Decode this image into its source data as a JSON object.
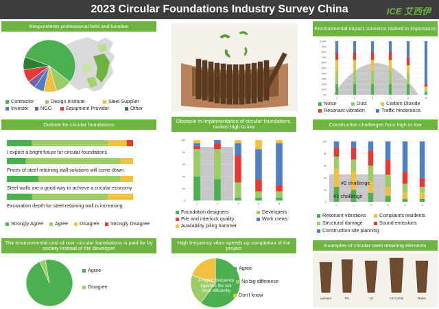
{
  "page": {
    "title": "2023 Circular Foundations Industry Survey China",
    "logo": "ICE 艾西伊"
  },
  "colors": {
    "green": "#4caf50",
    "light_green": "#9ccc65",
    "yellow": "#f0c040",
    "blue": "#4f7fc4",
    "purple": "#7b5ea7",
    "red": "#e53935",
    "dark_green": "#2e7d32",
    "grey": "#bdbdbd"
  },
  "panels": {
    "respondents": {
      "title": "Respondents professional field and location",
      "legend": [
        "Contractor",
        "Design Institute",
        "Steel Supplier",
        "Investor",
        "NGO",
        "Equipment Provider",
        "Other"
      ]
    },
    "impact": {
      "title": "Environmental impact concerns ranked in importance",
      "legend": [
        "Noise",
        "Dust",
        "Carbon Dioxide",
        "Resonant vibration",
        "Traffic hinderance"
      ]
    },
    "outlook": {
      "title": "Outlook for circular foundations",
      "statements": [
        "I expect a bright future for circular foundations",
        "Prices of steel retaining wall solutions will come down",
        "Steel walls are a good way to achieve a circular economy",
        "Excavation depth for steel retaining wall is increasing"
      ],
      "legend": [
        "Strongly Agree",
        "Agree",
        "Disagree",
        "Strongly Disagree"
      ]
    },
    "obstacle": {
      "title": "Obstacle to implementation of circular foundations, ranked high to low",
      "legend": [
        "Foundation designers",
        "Developers",
        "Pile and interlock quality",
        "Work crews",
        "Availability piling hammer"
      ]
    },
    "construction": {
      "title": "Construction challenges from high to low",
      "annotations": [
        "#2 challenge",
        "#1 challenge"
      ],
      "legend": [
        "Resonant vibrations",
        "Complaints residents",
        "Structural damage",
        "Sound emissions",
        "Construction site planning"
      ]
    },
    "env_cost": {
      "title": "The environmental cost of non- circular foundations is paid for by society instead of the developer",
      "legend": [
        "Agree",
        "Disagree"
      ]
    },
    "vibro": {
      "title": "High frequency vibro speeds up completion of the project",
      "legend": [
        "Agree",
        "No big difference",
        "Don't know"
      ],
      "note": "A higher frequency liquefies the soil more efficiently"
    },
    "examples": {
      "title": "Examples of circular steel retaining elements",
      "items": [
        "Larssen",
        "PC",
        "AZ",
        "AZ Combi",
        "Rhine"
      ]
    }
  },
  "chart_data": [
    {
      "type": "pie",
      "name": "respondents",
      "labels": [
        "Contractor",
        "Design Institute",
        "Steel Supplier",
        "Investor",
        "NGO",
        "Equipment Provider",
        "Other"
      ],
      "values": [
        55,
        10,
        8,
        6,
        5,
        8,
        8
      ]
    },
    {
      "type": "bar",
      "name": "impact",
      "stacked": true,
      "categories": [
        "1",
        "2",
        "3",
        "4",
        "5",
        "6"
      ],
      "series": [
        {
          "name": "Noise",
          "values": [
            20,
            20,
            20,
            20,
            20,
            5
          ]
        },
        {
          "name": "Dust",
          "values": [
            25,
            25,
            25,
            25,
            20,
            5
          ]
        },
        {
          "name": "Carbon Dioxide",
          "values": [
            20,
            20,
            20,
            20,
            15,
            5
          ]
        },
        {
          "name": "Resonant vibration",
          "values": [
            15,
            15,
            15,
            15,
            15,
            5
          ]
        },
        {
          "name": "Traffic hinderance",
          "values": [
            20,
            20,
            20,
            20,
            30,
            80
          ]
        }
      ],
      "yticks": [
        "0%",
        "10%",
        "20%",
        "30%",
        "40%",
        "50%",
        "60%",
        "70%",
        "80%",
        "90%",
        "100%"
      ]
    },
    {
      "type": "bar",
      "name": "outlook",
      "orientation": "horizontal",
      "stacked": true,
      "categories": [
        "I expect a bright future for circular foundations",
        "Prices of steel retaining wall solutions will come down",
        "Steel walls are a good way to achieve a circular economy",
        "Excavation depth for steel retaining wall is increasing"
      ],
      "series": [
        {
          "name": "Strongly Agree",
          "values": [
            20,
            15,
            25,
            20
          ]
        },
        {
          "name": "Agree",
          "values": [
            60,
            75,
            65,
            60
          ]
        },
        {
          "name": "Disagree",
          "values": [
            15,
            10,
            10,
            20
          ]
        },
        {
          "name": "Strongly Disagree",
          "values": [
            5,
            0,
            0,
            0
          ]
        }
      ]
    },
    {
      "type": "bar",
      "name": "obstacle",
      "stacked": true,
      "categories": [
        "1",
        "2",
        "3",
        "4",
        "5"
      ],
      "series": [
        {
          "name": "Foundation designers",
          "values": [
            40,
            35,
            5,
            5,
            5
          ]
        },
        {
          "name": "Developers",
          "values": [
            45,
            50,
            25,
            10,
            10
          ]
        },
        {
          "name": "Pile and interlock quality",
          "values": [
            5,
            10,
            45,
            20,
            10
          ]
        },
        {
          "name": "Work crews",
          "values": [
            5,
            5,
            20,
            50,
            70
          ]
        },
        {
          "name": "Availability piling hammer",
          "values": [
            5,
            0,
            5,
            15,
            5
          ]
        }
      ]
    },
    {
      "type": "bar",
      "name": "construction",
      "stacked": true,
      "categories": [
        "1",
        "2",
        "3",
        "4",
        "5",
        "6"
      ],
      "series": [
        {
          "name": "Resonant vibrations",
          "values": [
            25,
            20,
            15,
            10,
            5,
            5
          ]
        },
        {
          "name": "Complaints residents",
          "values": [
            30,
            30,
            20,
            15,
            10,
            10
          ]
        },
        {
          "name": "Structural damage",
          "values": [
            20,
            20,
            25,
            20,
            15,
            10
          ]
        },
        {
          "name": "Sound emissions",
          "values": [
            15,
            20,
            25,
            25,
            20,
            15
          ]
        },
        {
          "name": "Construction site planning",
          "values": [
            10,
            10,
            15,
            30,
            50,
            60
          ]
        }
      ]
    },
    {
      "type": "pie",
      "name": "env_cost",
      "labels": [
        "Agree",
        "Disagree"
      ],
      "values": [
        96,
        4
      ]
    },
    {
      "type": "pie",
      "name": "vibro",
      "labels": [
        "Agree",
        "No big difference",
        "Don't know"
      ],
      "values": [
        60,
        20,
        20
      ]
    }
  ]
}
